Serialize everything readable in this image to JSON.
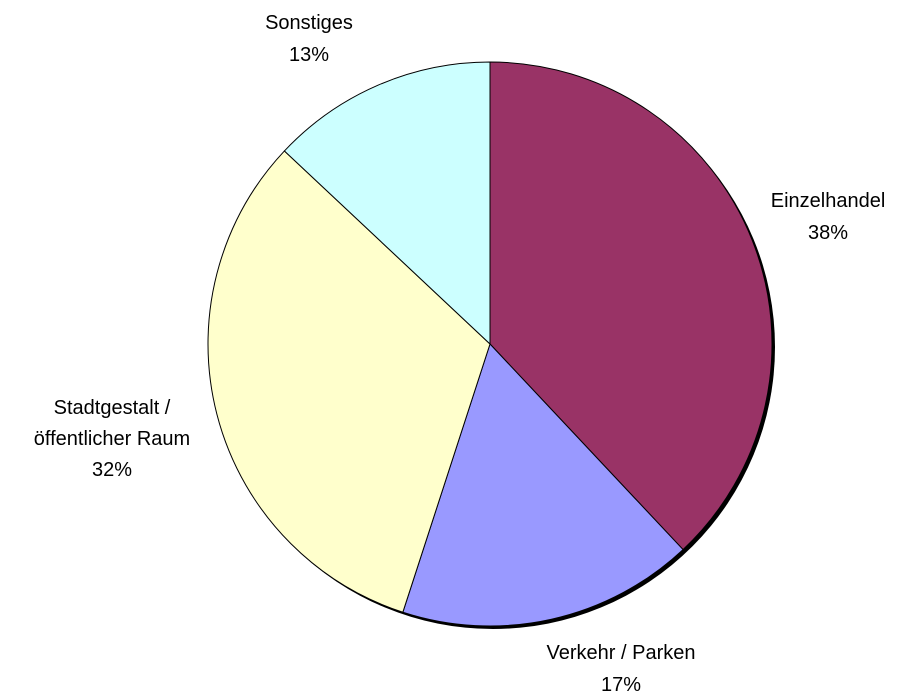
{
  "chart_data": {
    "type": "pie",
    "categories": [
      "Einzelhandel",
      "Verkehr / Parken",
      "Stadtgestalt / öffentlicher Raum",
      "Sonstiges"
    ],
    "values": [
      38,
      17,
      32,
      13
    ],
    "value_labels": [
      "38%",
      "17%",
      "32%",
      "13%"
    ],
    "colors": [
      "#993366",
      "#9999ff",
      "#ffffcc",
      "#ccffff"
    ]
  }
}
